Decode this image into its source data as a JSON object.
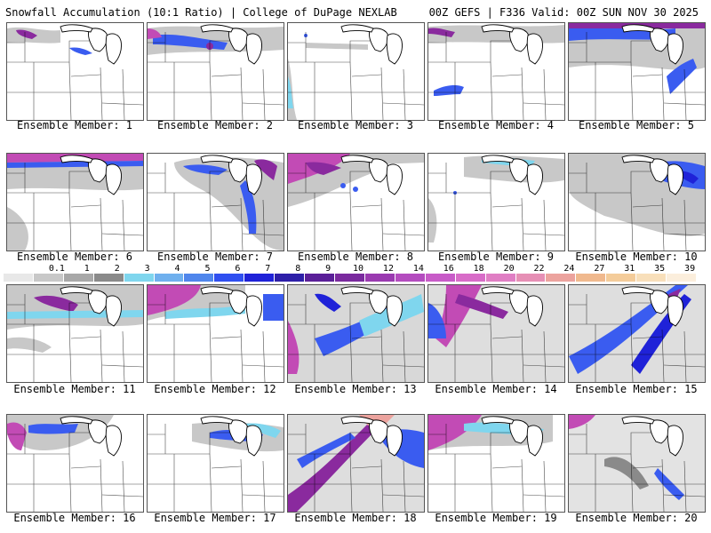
{
  "header": {
    "title_left": "Snowfall Accumulation (10:1 Ratio) | College of DuPage NEXLAB",
    "title_right": "00Z GEFS | F336 Valid: 00Z SUN NOV 30 2025"
  },
  "members": [
    {
      "label": "Ensemble Member: 1"
    },
    {
      "label": "Ensemble Member: 2"
    },
    {
      "label": "Ensemble Member: 3"
    },
    {
      "label": "Ensemble Member: 4"
    },
    {
      "label": "Ensemble Member: 5"
    },
    {
      "label": "Ensemble Member: 6"
    },
    {
      "label": "Ensemble Member: 7"
    },
    {
      "label": "Ensemble Member: 8"
    },
    {
      "label": "Ensemble Member: 9"
    },
    {
      "label": "Ensemble Member: 10"
    },
    {
      "label": "Ensemble Member: 11"
    },
    {
      "label": "Ensemble Member: 12"
    },
    {
      "label": "Ensemble Member: 13"
    },
    {
      "label": "Ensemble Member: 14"
    },
    {
      "label": "Ensemble Member: 15"
    },
    {
      "label": "Ensemble Member: 16"
    },
    {
      "label": "Ensemble Member: 17"
    },
    {
      "label": "Ensemble Member: 18"
    },
    {
      "label": "Ensemble Member: 19"
    },
    {
      "label": "Ensemble Member: 20"
    }
  ],
  "colorbar": {
    "labels": [
      "0.1",
      "1",
      "2",
      "3",
      "4",
      "5",
      "6",
      "7",
      "8",
      "9",
      "10",
      "12",
      "14",
      "16",
      "18",
      "20",
      "22",
      "24",
      "27",
      "31",
      "35",
      "39"
    ],
    "colors": [
      "#e8e8e8",
      "#c8c8c8",
      "#a8a8a8",
      "#8a8a8a",
      "#7fd6ee",
      "#6fb0ee",
      "#4f86ec",
      "#2f4ff0",
      "#1f22d8",
      "#2d1fa8",
      "#5a1f98",
      "#7a2a9e",
      "#9a3ab0",
      "#b44cbf",
      "#c85bc8",
      "#d86cc8",
      "#e07ec4",
      "#e68fb5",
      "#eca39e",
      "#f0b98e",
      "#f4cc9a",
      "#f8dfba",
      "#fbeedc"
    ]
  },
  "colors": {
    "lake": "#cfcfcf",
    "border": "#000000",
    "snow_light": "#c8c8c8",
    "snow_mid": "#8a8a8a",
    "snow_cyan": "#7fd6ee",
    "snow_blue": "#3a5cf0",
    "snow_navy": "#1f22d8",
    "snow_purple": "#8a2a9e",
    "snow_magenta": "#c24bb5"
  }
}
